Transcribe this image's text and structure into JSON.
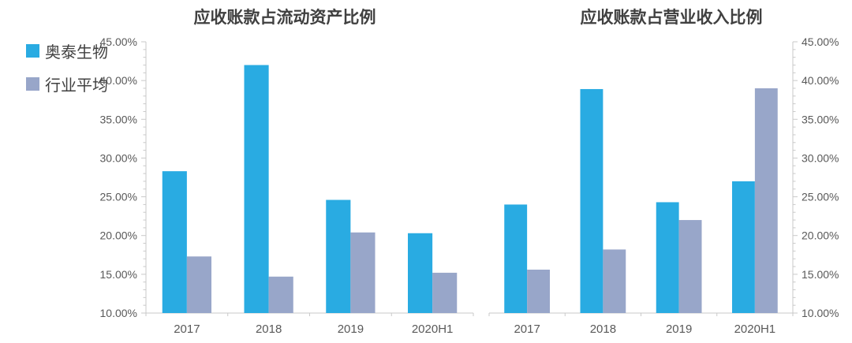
{
  "legend": {
    "items": [
      {
        "label": "奥泰生物",
        "color": "#29ABE2"
      },
      {
        "label": "行业平均",
        "color": "#98A6C9"
      }
    ]
  },
  "chart_data": [
    {
      "type": "bar",
      "title": "应收账款占流动资产比例",
      "categories": [
        "2017",
        "2018",
        "2019",
        "2020H1"
      ],
      "series": [
        {
          "name": "奥泰生物",
          "color": "#29ABE2",
          "values": [
            28.3,
            42.0,
            24.6,
            20.3
          ]
        },
        {
          "name": "行业平均",
          "color": "#98A6C9",
          "values": [
            17.3,
            14.7,
            20.4,
            15.2
          ]
        }
      ],
      "xlabel": "",
      "ylabel": "",
      "ylim": [
        10,
        45
      ],
      "y_major_step": 5,
      "y_minor_step": 1,
      "y_tick_labels": [
        {
          "value": 45,
          "label": "45.00%"
        },
        {
          "value": 40,
          "label": "40.00%"
        },
        {
          "value": 35,
          "label": "35.00%"
        },
        {
          "value": 30,
          "label": "30.00%"
        },
        {
          "value": 25,
          "label": "25.00%"
        },
        {
          "value": 20,
          "label": "20.00%"
        },
        {
          "value": 15,
          "label": "15.00%"
        },
        {
          "value": 10,
          "label": "10.00%"
        }
      ],
      "value_axis_side": "left",
      "grid": false,
      "legend_position": "top-left"
    },
    {
      "type": "bar",
      "title": "应收账款占营业收入比例",
      "categories": [
        "2017",
        "2018",
        "2019",
        "2020H1"
      ],
      "series": [
        {
          "name": "奥泰生物",
          "color": "#29ABE2",
          "values": [
            24.0,
            38.9,
            24.3,
            27.0
          ]
        },
        {
          "name": "行业平均",
          "color": "#98A6C9",
          "values": [
            15.6,
            18.2,
            22.0,
            39.0
          ]
        }
      ],
      "xlabel": "",
      "ylabel": "",
      "ylim": [
        10,
        45
      ],
      "y_major_step": 5,
      "y_minor_step": 1,
      "y_tick_labels": [
        {
          "value": 45,
          "label": "45.00%"
        },
        {
          "value": 40,
          "label": "40.00%"
        },
        {
          "value": 35,
          "label": "35.00%"
        },
        {
          "value": 30,
          "label": "30.00%"
        },
        {
          "value": 25,
          "label": "25.00%"
        },
        {
          "value": 20,
          "label": "20.00%"
        },
        {
          "value": 15,
          "label": "15.00%"
        },
        {
          "value": 10,
          "label": "10.00%"
        }
      ],
      "value_axis_side": "right",
      "grid": false,
      "legend_position": "top-left"
    }
  ]
}
